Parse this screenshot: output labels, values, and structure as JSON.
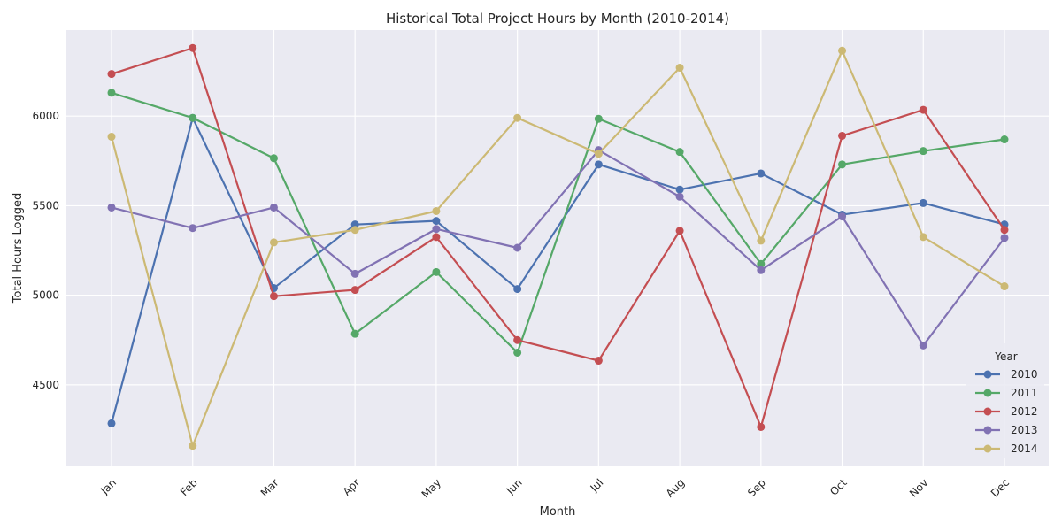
{
  "chart_data": {
    "type": "line",
    "title": "Historical Total Project Hours by Month (2010-2014)",
    "xlabel": "Month",
    "ylabel": "Total Hours Logged",
    "categories": [
      "Jan",
      "Feb",
      "Mar",
      "Apr",
      "May",
      "Jun",
      "Jul",
      "Aug",
      "Sep",
      "Oct",
      "Nov",
      "Dec"
    ],
    "yticks": [
      4500,
      5000,
      5500,
      6000
    ],
    "ylim": [
      4050,
      6480
    ],
    "grid": true,
    "legend": {
      "title": "Year",
      "placement": "bottom-right"
    },
    "series": [
      {
        "name": "2010",
        "color": "#4c72b0",
        "values": [
          4285,
          5990,
          5040,
          5395,
          5415,
          5035,
          5730,
          5590,
          5680,
          5450,
          5515,
          5395
        ]
      },
      {
        "name": "2011",
        "color": "#55a868",
        "values": [
          6130,
          5990,
          5765,
          4785,
          5130,
          4680,
          5985,
          5800,
          5175,
          5730,
          5805,
          5870
        ]
      },
      {
        "name": "2012",
        "color": "#c44e52",
        "values": [
          6235,
          6380,
          4995,
          5030,
          5325,
          4750,
          4635,
          5360,
          4265,
          5890,
          6035,
          5365
        ]
      },
      {
        "name": "2013",
        "color": "#8172b3",
        "values": [
          5490,
          5375,
          5490,
          5120,
          5370,
          5265,
          5810,
          5550,
          5140,
          5440,
          4720,
          5320
        ]
      },
      {
        "name": "2014",
        "color": "#ccb974",
        "values": [
          5885,
          4160,
          5295,
          5365,
          5470,
          5990,
          5790,
          6270,
          5305,
          6365,
          5325,
          5050
        ]
      }
    ]
  }
}
